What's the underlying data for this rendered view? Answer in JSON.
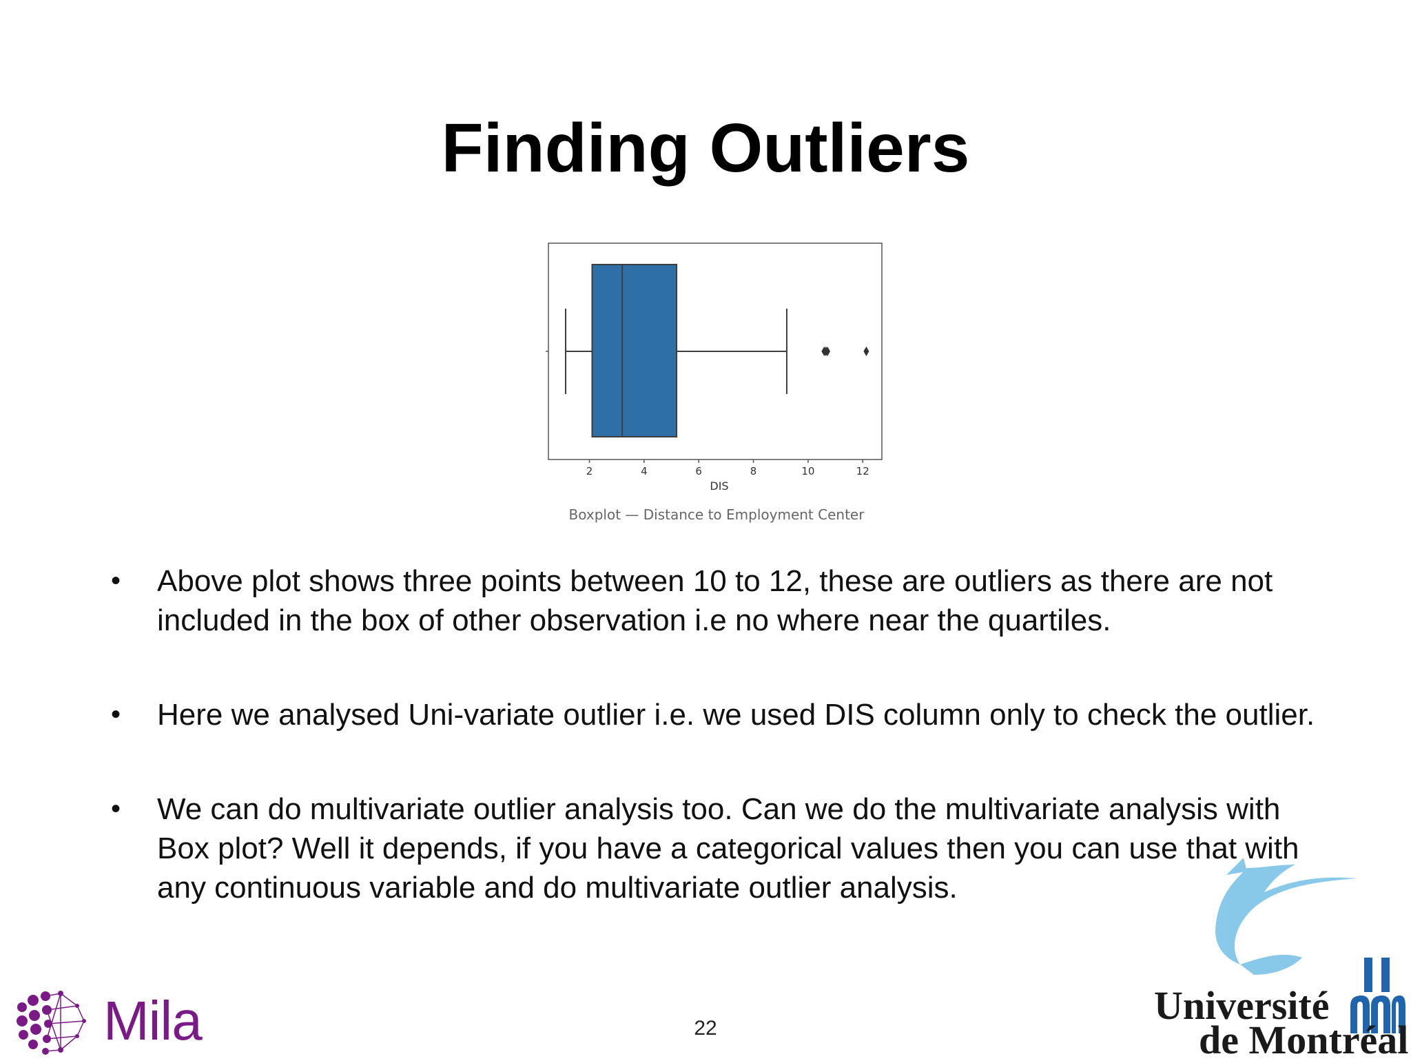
{
  "slide": {
    "title": "Finding Outliers",
    "caption": "Boxplot — Distance to Employment Center",
    "page_number": "22"
  },
  "bullets": [
    "Above plot shows three points between 10 to 12, these are outliers as there are not included in the box of other observation i.e no where near the quartiles.",
    "Here we analysed Uni-variate outlier i.e. we used DIS column only to check the outlier.",
    "We can do multivariate outlier analysis too. Can we do the multivariate analysis with Box plot? Well it depends, if you have a categorical values then you can use that with any continuous variable and do multivariate outlier analysis."
  ],
  "logos": {
    "mila": "Mila",
    "udem_line1": "Université",
    "udem_line2": "de Montréal"
  },
  "colors": {
    "box_fill": "#2e6fa7",
    "mila_purple": "#7a1a86",
    "udem_blue": "#1f64ad",
    "udem_bird": "#7cc4e8"
  },
  "chart_data": {
    "type": "box",
    "xlabel": "DIS",
    "xlim": [
      0.5,
      12.7
    ],
    "xticks": [
      2,
      4,
      6,
      8,
      10,
      12
    ],
    "box": {
      "whisker_low": 1.13,
      "q1": 2.1,
      "median": 3.2,
      "q3": 5.19,
      "whisker_high": 9.22
    },
    "outliers": [
      10.59,
      10.65,
      10.71,
      12.13
    ]
  }
}
